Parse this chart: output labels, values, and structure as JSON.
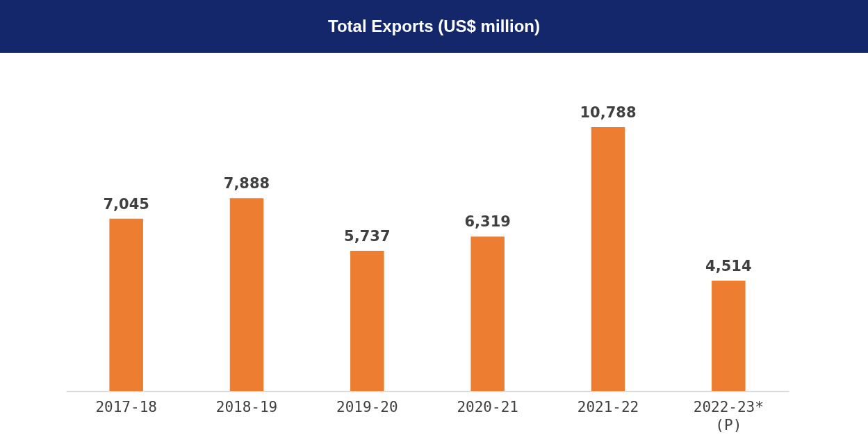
{
  "chart_data": {
    "type": "bar",
    "title": "Total Exports (US$ million)",
    "categories": [
      "2017-18",
      "2018-19",
      "2019-20",
      "2020-21",
      "2021-22",
      "2022-23*\n(P)"
    ],
    "values": [
      7045,
      7888,
      5737,
      6319,
      10788,
      4514
    ],
    "value_labels": [
      "7,045",
      "7,888",
      "5,737",
      "6,319",
      "10,788",
      "4,514"
    ],
    "color": "#ed7d31",
    "grid": false
  }
}
